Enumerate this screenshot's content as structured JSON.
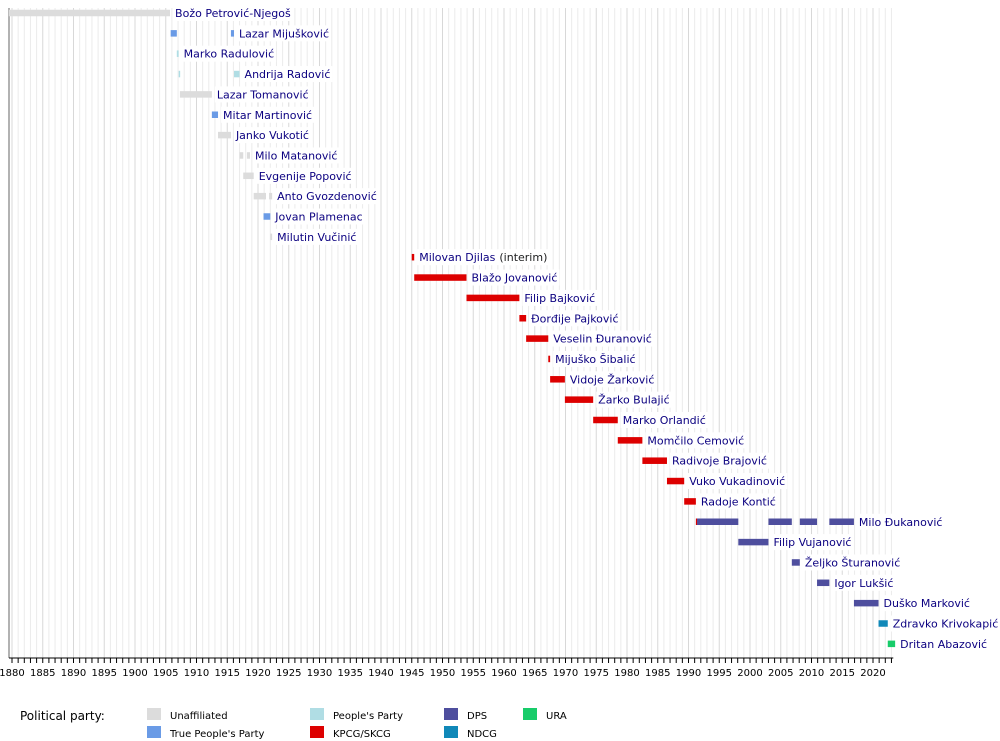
{
  "chart_data": {
    "type": "timeline",
    "x_range": [
      1880,
      2023
    ],
    "tick_step": 5,
    "grid": "vertical, every year",
    "legend": {
      "title": "Political party:",
      "items": [
        {
          "key": "unaffiliated",
          "label": "Unaffiliated",
          "color": "#dcdcdc"
        },
        {
          "key": "tpp",
          "label": "True People's Party",
          "color": "#6a9be6"
        },
        {
          "key": "pp",
          "label": "People's Party",
          "color": "#b0dde4"
        },
        {
          "key": "kpcg",
          "label": "KPCG/SKCG",
          "color": "#dd0000"
        },
        {
          "key": "dps",
          "label": "DPS",
          "color": "#4e4e9e"
        },
        {
          "key": "ndcg",
          "label": "NDCG",
          "color": "#1088b8"
        },
        {
          "key": "ura",
          "label": "URA",
          "color": "#18cc6a"
        }
      ]
    },
    "rows": [
      {
        "name": "Božo Petrović-Njegoš",
        "note": "",
        "terms": [
          {
            "start": 1879.5,
            "end": 1905.7,
            "party": "unaffiliated"
          }
        ]
      },
      {
        "name": "Lazar Mijušković",
        "note": "",
        "terms": [
          {
            "start": 1905.8,
            "end": 1906.8,
            "party": "tpp"
          },
          {
            "start": 1915.6,
            "end": 1916.1,
            "party": "tpp"
          }
        ]
      },
      {
        "name": "Marko Radulović",
        "note": "",
        "terms": [
          {
            "start": 1906.8,
            "end": 1907.1,
            "party": "pp"
          }
        ]
      },
      {
        "name": "Andrija Radović",
        "note": "",
        "terms": [
          {
            "start": 1907.1,
            "end": 1907.3,
            "party": "pp"
          },
          {
            "start": 1916.1,
            "end": 1917.0,
            "party": "pp"
          }
        ]
      },
      {
        "name": "Lazar Tomanović",
        "note": "",
        "terms": [
          {
            "start": 1907.3,
            "end": 1912.5,
            "party": "unaffiliated"
          }
        ]
      },
      {
        "name": "Mitar Martinović",
        "note": "",
        "terms": [
          {
            "start": 1912.5,
            "end": 1913.5,
            "party": "tpp"
          }
        ]
      },
      {
        "name": "Janko Vukotić",
        "note": "",
        "terms": [
          {
            "start": 1913.5,
            "end": 1915.6,
            "party": "unaffiliated"
          }
        ]
      },
      {
        "name": "Milo Matanović",
        "note": "",
        "terms": [
          {
            "start": 1917.0,
            "end": 1917.6,
            "party": "unaffiliated"
          },
          {
            "start": 1918.2,
            "end": 1918.7,
            "party": "unaffiliated"
          }
        ]
      },
      {
        "name": "Evgenije Popović",
        "note": "",
        "terms": [
          {
            "start": 1917.6,
            "end": 1919.3,
            "party": "unaffiliated"
          }
        ]
      },
      {
        "name": "Anto Gvozdenović",
        "note": "",
        "terms": [
          {
            "start": 1919.3,
            "end": 1921.3,
            "party": "unaffiliated"
          },
          {
            "start": 1921.8,
            "end": 1922.3,
            "party": "unaffiliated"
          }
        ]
      },
      {
        "name": "Jovan Plamenac",
        "note": "",
        "terms": [
          {
            "start": 1920.9,
            "end": 1922.0,
            "party": "tpp"
          }
        ]
      },
      {
        "name": "Milutin Vučinić",
        "note": "",
        "terms": [
          {
            "start": 1922.0,
            "end": 1922.3,
            "party": "unaffiliated"
          }
        ]
      },
      {
        "name": "Milovan Djilas",
        "note": "(interim)",
        "terms": [
          {
            "start": 1945.0,
            "end": 1945.4,
            "party": "kpcg"
          }
        ]
      },
      {
        "name": "Blažo Jovanović",
        "note": "",
        "terms": [
          {
            "start": 1945.4,
            "end": 1953.9,
            "party": "kpcg"
          }
        ]
      },
      {
        "name": "Filip Bajković",
        "note": "",
        "terms": [
          {
            "start": 1953.9,
            "end": 1962.5,
            "party": "kpcg"
          }
        ]
      },
      {
        "name": "Đorđije Pajković",
        "note": "",
        "terms": [
          {
            "start": 1962.5,
            "end": 1963.6,
            "party": "kpcg"
          }
        ]
      },
      {
        "name": "Veselin Đuranović",
        "note": "",
        "terms": [
          {
            "start": 1963.6,
            "end": 1967.2,
            "party": "kpcg"
          }
        ]
      },
      {
        "name": "Mijuško Šibalić",
        "note": "",
        "terms": [
          {
            "start": 1967.2,
            "end": 1967.5,
            "party": "kpcg"
          }
        ]
      },
      {
        "name": "Vidoje Žarković",
        "note": "",
        "terms": [
          {
            "start": 1967.5,
            "end": 1969.9,
            "party": "kpcg"
          }
        ]
      },
      {
        "name": "Žarko Bulajić",
        "note": "",
        "terms": [
          {
            "start": 1969.9,
            "end": 1974.5,
            "party": "kpcg"
          }
        ]
      },
      {
        "name": "Marko Orlandić",
        "note": "",
        "terms": [
          {
            "start": 1974.5,
            "end": 1978.5,
            "party": "kpcg"
          }
        ]
      },
      {
        "name": "Momčilo Cemović",
        "note": "",
        "terms": [
          {
            "start": 1978.5,
            "end": 1982.5,
            "party": "kpcg"
          }
        ]
      },
      {
        "name": "Radivoje Brajović",
        "note": "",
        "terms": [
          {
            "start": 1982.5,
            "end": 1986.5,
            "party": "kpcg"
          }
        ]
      },
      {
        "name": "Vuko Vukadinović",
        "note": "",
        "terms": [
          {
            "start": 1986.5,
            "end": 1989.3,
            "party": "kpcg"
          }
        ]
      },
      {
        "name": "Radoje Kontić",
        "note": "",
        "terms": [
          {
            "start": 1989.3,
            "end": 1991.2,
            "party": "kpcg"
          }
        ]
      },
      {
        "name": "Milo Đukanović",
        "note": "",
        "terms": [
          {
            "start": 1991.2,
            "end": 1991.4,
            "party": "kpcg"
          },
          {
            "start": 1991.4,
            "end": 1998.1,
            "party": "dps"
          },
          {
            "start": 2003.0,
            "end": 2006.8,
            "party": "dps"
          },
          {
            "start": 2008.1,
            "end": 2010.9,
            "party": "dps"
          },
          {
            "start": 2012.9,
            "end": 2016.9,
            "party": "dps"
          }
        ]
      },
      {
        "name": "Filip Vujanović",
        "note": "",
        "terms": [
          {
            "start": 1998.1,
            "end": 2003.0,
            "party": "dps"
          }
        ]
      },
      {
        "name": "Željko Šturanović",
        "note": "",
        "terms": [
          {
            "start": 2006.8,
            "end": 2008.1,
            "party": "dps"
          }
        ]
      },
      {
        "name": "Igor Lukšić",
        "note": "",
        "terms": [
          {
            "start": 2010.9,
            "end": 2012.9,
            "party": "dps"
          }
        ]
      },
      {
        "name": "Duško Marković",
        "note": "",
        "terms": [
          {
            "start": 2016.9,
            "end": 2020.9,
            "party": "dps"
          }
        ]
      },
      {
        "name": "Zdravko Krivokapić",
        "note": "",
        "terms": [
          {
            "start": 2020.9,
            "end": 2022.4,
            "party": "ndcg"
          }
        ]
      },
      {
        "name": "Dritan Abazović",
        "note": "",
        "terms": [
          {
            "start": 2022.4,
            "end": 2023.6,
            "party": "ura"
          }
        ]
      }
    ]
  }
}
